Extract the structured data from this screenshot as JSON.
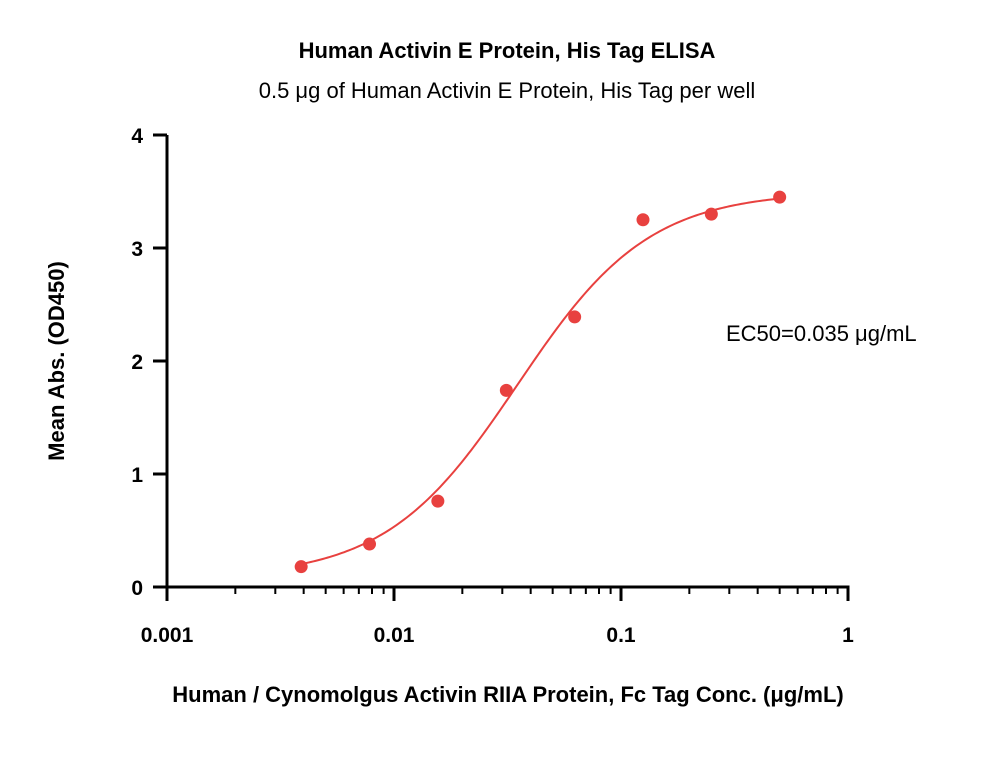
{
  "chart_data": {
    "type": "scatter",
    "title": "Human Activin E Protein, His Tag ELISA",
    "subtitle": "0.5 μg of Human Activin E Protein, His Tag per well",
    "xlabel": "Human / Cynomolgus Activin RIIA Protein, Fc Tag Conc. (μg/mL)",
    "ylabel": "Mean Abs. (OD450)",
    "x_scale": "log",
    "xlim": [
      0.001,
      1
    ],
    "ylim": [
      0,
      4
    ],
    "x_ticks": [
      {
        "value": 0.001,
        "label": "0.001"
      },
      {
        "value": 0.01,
        "label": "0.01"
      },
      {
        "value": 0.1,
        "label": "0.1"
      },
      {
        "value": 1,
        "label": "1"
      }
    ],
    "y_ticks": [
      {
        "value": 0,
        "label": "0"
      },
      {
        "value": 1,
        "label": "1"
      },
      {
        "value": 2,
        "label": "2"
      },
      {
        "value": 3,
        "label": "3"
      },
      {
        "value": 4,
        "label": "4"
      }
    ],
    "grid": false,
    "series": [
      {
        "x": [
          0.0039,
          0.0078,
          0.0156,
          0.03125,
          0.0625,
          0.125,
          0.25,
          0.5
        ],
        "y": [
          0.18,
          0.38,
          0.76,
          1.74,
          2.39,
          3.25,
          3.3,
          3.45
        ],
        "color": "#e8413f",
        "fit": "4PL"
      }
    ],
    "fit_curve": {
      "bottom": 0.08,
      "top": 3.5,
      "ec50": 0.035,
      "hill": 1.5,
      "x_range": [
        0.0039,
        0.5
      ],
      "color": "#e8413f"
    },
    "annotations": [
      {
        "text": "EC50=0.035 μg/mL"
      }
    ]
  }
}
